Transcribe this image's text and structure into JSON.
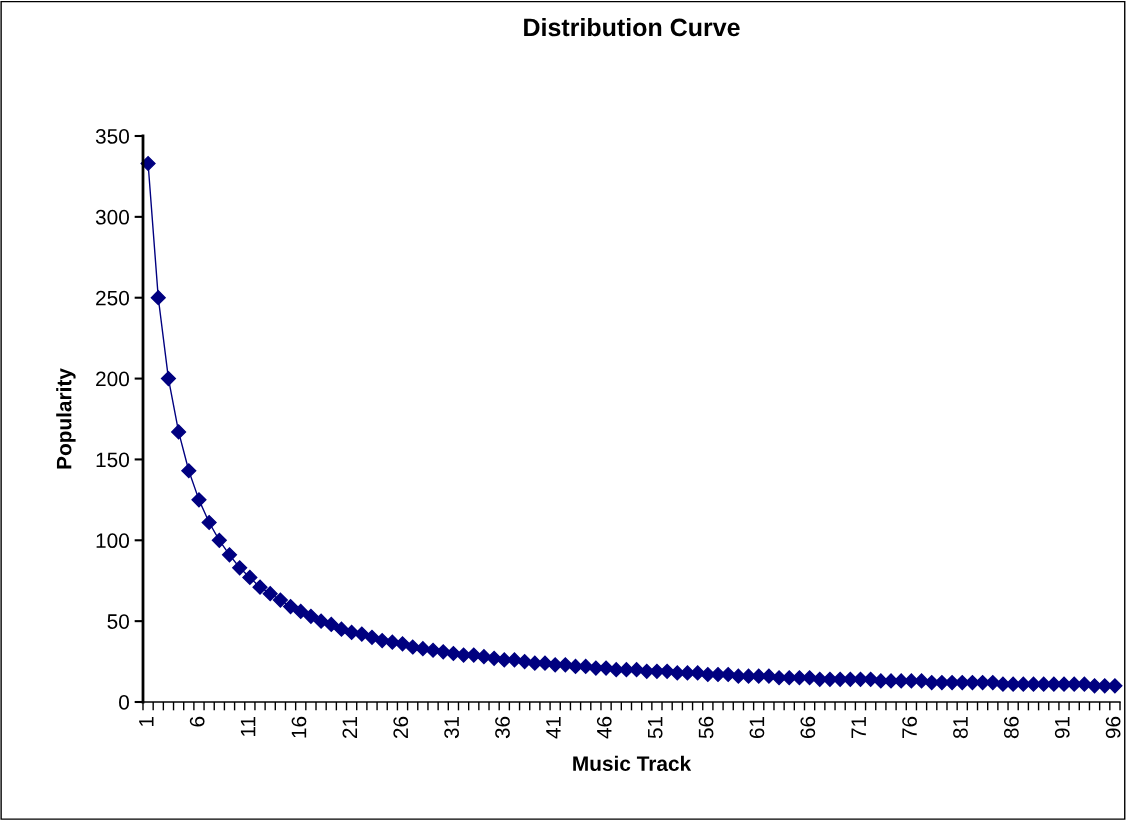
{
  "chart_data": {
    "type": "line",
    "title": "Distribution Curve",
    "xlabel": "Music Track",
    "ylabel": "Popularity",
    "categories": [
      "1",
      null,
      null,
      null,
      null,
      "6",
      null,
      null,
      null,
      null,
      "11",
      null,
      null,
      null,
      null,
      "16",
      null,
      null,
      null,
      null,
      "21",
      null,
      null,
      null,
      null,
      "26",
      null,
      null,
      null,
      null,
      "31",
      null,
      null,
      null,
      null,
      "36",
      null,
      null,
      null,
      null,
      "41",
      null,
      null,
      null,
      null,
      "46",
      null,
      null,
      null,
      null,
      "51",
      null,
      null,
      null,
      null,
      "56",
      null,
      null,
      null,
      null,
      "61",
      null,
      null,
      null,
      null,
      "66",
      null,
      null,
      null,
      null,
      "71",
      null,
      null,
      null,
      null,
      "76",
      null,
      null,
      null,
      null,
      "81",
      null,
      null,
      null,
      null,
      "86",
      null,
      null,
      null,
      null,
      "91",
      null,
      null,
      null,
      null,
      "96"
    ],
    "series": [
      {
        "color": "#000080",
        "values": [
          333,
          250,
          200,
          167,
          143,
          125,
          111,
          100,
          91,
          83,
          77,
          71,
          67,
          63,
          59,
          56,
          53,
          50,
          48,
          45,
          43,
          42,
          40,
          38,
          37,
          36,
          34,
          33,
          32,
          31,
          30,
          29,
          29,
          28,
          27,
          26,
          26,
          25,
          24,
          24,
          23,
          23,
          22,
          22,
          21,
          21,
          20,
          20,
          20,
          19,
          19,
          19,
          18,
          18,
          18,
          17,
          17,
          17,
          16,
          16,
          16,
          16,
          15,
          15,
          15,
          15,
          14,
          14,
          14,
          14,
          14,
          14,
          13,
          13,
          13,
          13,
          13,
          12,
          12,
          12,
          12,
          12,
          12,
          12,
          11,
          11,
          11,
          11,
          11,
          11,
          11,
          11,
          11,
          10,
          10,
          10
        ]
      }
    ],
    "ylim": [
      0,
      350
    ],
    "yticks": [
      0,
      50,
      100,
      150,
      200,
      250,
      300,
      350
    ],
    "grid": false,
    "marker": "diamond",
    "line_style": "solid"
  }
}
